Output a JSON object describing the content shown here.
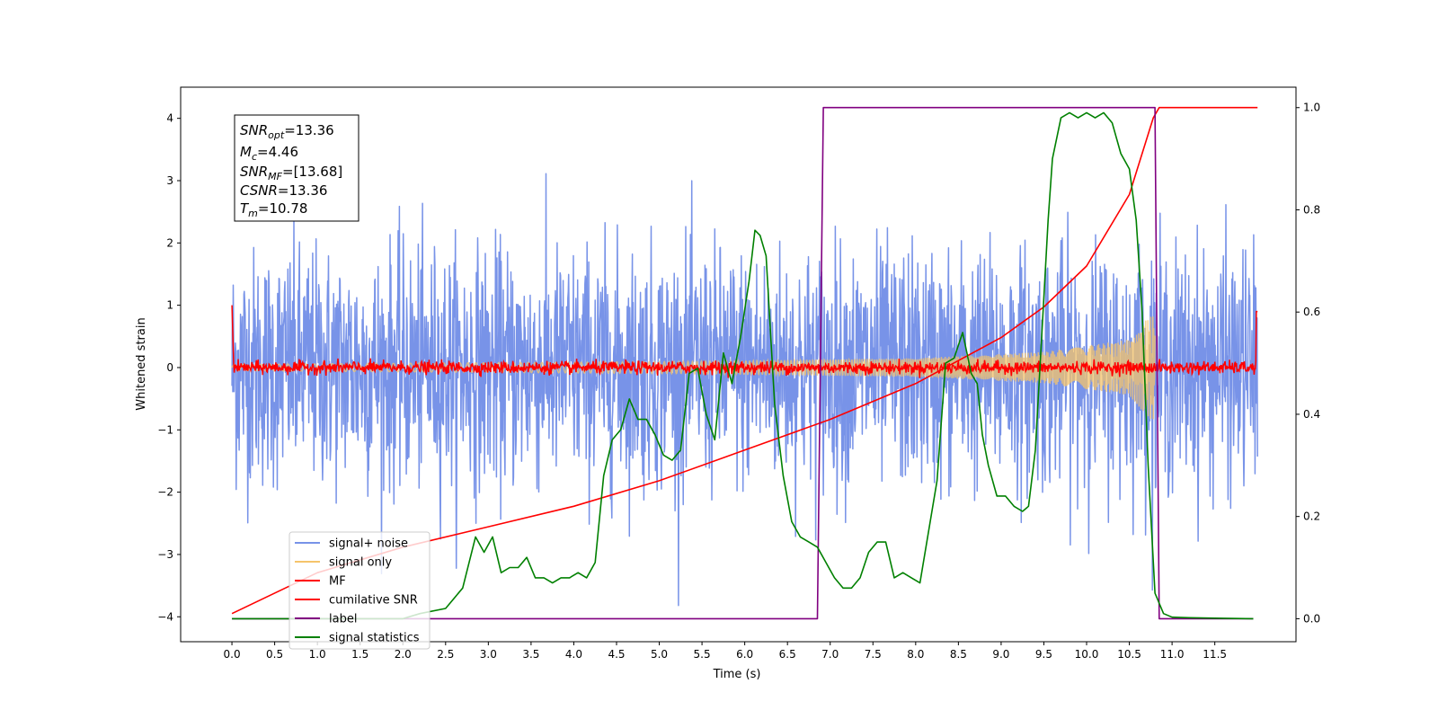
{
  "chart_data": {
    "type": "line",
    "xlabel": "Time (s)",
    "ylabel_left": "Whitened strain",
    "ylabel_right": "",
    "xlim": [
      -0.6,
      12.45
    ],
    "ylim_left": [
      -4.4,
      4.5
    ],
    "ylim_right": [
      -0.045,
      1.04
    ],
    "x_ticks": [
      "0.0",
      "0.5",
      "1.0",
      "1.5",
      "2.0",
      "2.5",
      "3.0",
      "3.5",
      "4.0",
      "4.5",
      "5.0",
      "5.5",
      "6.0",
      "6.5",
      "7.0",
      "7.5",
      "8.0",
      "8.5",
      "9.0",
      "9.5",
      "10.0",
      "10.5",
      "11.0",
      "11.5"
    ],
    "y_left_ticks": [
      "4",
      "3",
      "2",
      "1",
      "0",
      "−1",
      "−2",
      "−3",
      "−4"
    ],
    "y_right_ticks": [
      "1.0",
      "0.8",
      "0.6",
      "0.4",
      "0.2",
      "0.0"
    ],
    "grid": false,
    "legend_position": "lower-left",
    "annotation": {
      "lines": [
        {
          "main": "SNR",
          "sub": "opt",
          "rest": "=13.36"
        },
        {
          "main": "M",
          "sub": "c",
          "rest": "=4.46"
        },
        {
          "main": "SNR",
          "sub": "MF",
          "rest": "=[13.68]"
        },
        {
          "main": "CSNR",
          "sub": "",
          "rest": "=13.36"
        },
        {
          "main": "T",
          "sub": "m",
          "rest": "=10.78"
        }
      ]
    },
    "series": [
      {
        "name": "signal+ noise",
        "color": "#7893e8",
        "axis": "left",
        "description": "noise band about ±2.5"
      },
      {
        "name": "signal only",
        "color": "#f5c46b",
        "axis": "left",
        "envelope": {
          "x": [
            0.0,
            5.5,
            8.0,
            9.5,
            10.5,
            10.75
          ],
          "amp": [
            0.05,
            0.1,
            0.15,
            0.25,
            0.45,
            0.85
          ]
        }
      },
      {
        "name": "MF",
        "color": "#ff0000",
        "axis": "left",
        "description": "noise about ±0.12, edges at 1.0"
      },
      {
        "name": "cumilative SNR",
        "color": "#ff0000",
        "axis": "right",
        "x": [
          0.0,
          1.0,
          2.0,
          3.0,
          4.0,
          5.0,
          6.0,
          7.0,
          8.0,
          9.0,
          9.5,
          10.0,
          10.5,
          10.78,
          10.85,
          11.0,
          12.0
        ],
        "y": [
          0.01,
          0.09,
          0.14,
          0.18,
          0.22,
          0.27,
          0.33,
          0.39,
          0.46,
          0.55,
          0.61,
          0.69,
          0.83,
          0.98,
          1.0,
          1.0,
          1.0
        ]
      },
      {
        "name": "label",
        "color": "#800080",
        "axis": "right",
        "x": [
          0.0,
          6.85,
          6.92,
          10.8,
          10.85,
          11.95
        ],
        "y": [
          0.0,
          0.0,
          1.0,
          1.0,
          0.0,
          0.0
        ]
      },
      {
        "name": "signal statistics",
        "color": "#008000",
        "axis": "right",
        "x": [
          0.0,
          0.5,
          1.0,
          1.5,
          2.0,
          2.2,
          2.5,
          2.7,
          2.85,
          2.95,
          3.05,
          3.15,
          3.25,
          3.35,
          3.45,
          3.55,
          3.65,
          3.75,
          3.85,
          3.95,
          4.05,
          4.15,
          4.25,
          4.35,
          4.45,
          4.55,
          4.65,
          4.75,
          4.85,
          4.95,
          5.05,
          5.15,
          5.25,
          5.35,
          5.45,
          5.55,
          5.65,
          5.75,
          5.85,
          5.95,
          6.05,
          6.12,
          6.18,
          6.25,
          6.35,
          6.45,
          6.55,
          6.65,
          6.75,
          6.85,
          6.95,
          7.05,
          7.15,
          7.25,
          7.35,
          7.45,
          7.55,
          7.65,
          7.75,
          7.85,
          7.95,
          8.05,
          8.15,
          8.25,
          8.35,
          8.45,
          8.55,
          8.65,
          8.72,
          8.78,
          8.85,
          8.95,
          9.05,
          9.15,
          9.25,
          9.32,
          9.4,
          9.5,
          9.55,
          9.6,
          9.7,
          9.8,
          9.9,
          10.0,
          10.1,
          10.2,
          10.3,
          10.4,
          10.5,
          10.58,
          10.65,
          10.72,
          10.8,
          10.9,
          11.0,
          11.2,
          11.5,
          11.95
        ],
        "y": [
          0.0,
          0.0,
          0.0,
          0.0,
          0.0,
          0.01,
          0.02,
          0.06,
          0.16,
          0.13,
          0.16,
          0.09,
          0.1,
          0.1,
          0.12,
          0.08,
          0.08,
          0.07,
          0.08,
          0.08,
          0.09,
          0.08,
          0.11,
          0.28,
          0.35,
          0.37,
          0.43,
          0.39,
          0.39,
          0.36,
          0.32,
          0.31,
          0.33,
          0.48,
          0.49,
          0.4,
          0.35,
          0.52,
          0.46,
          0.55,
          0.66,
          0.76,
          0.75,
          0.71,
          0.42,
          0.28,
          0.19,
          0.16,
          0.15,
          0.14,
          0.11,
          0.08,
          0.06,
          0.06,
          0.08,
          0.13,
          0.15,
          0.15,
          0.08,
          0.09,
          0.08,
          0.07,
          0.17,
          0.27,
          0.5,
          0.51,
          0.56,
          0.48,
          0.46,
          0.36,
          0.3,
          0.24,
          0.24,
          0.22,
          0.21,
          0.22,
          0.33,
          0.63,
          0.78,
          0.9,
          0.98,
          0.99,
          0.98,
          0.99,
          0.98,
          0.99,
          0.97,
          0.91,
          0.88,
          0.78,
          0.6,
          0.3,
          0.05,
          0.01,
          0.003,
          0.002,
          0.001,
          0.0
        ]
      }
    ]
  }
}
